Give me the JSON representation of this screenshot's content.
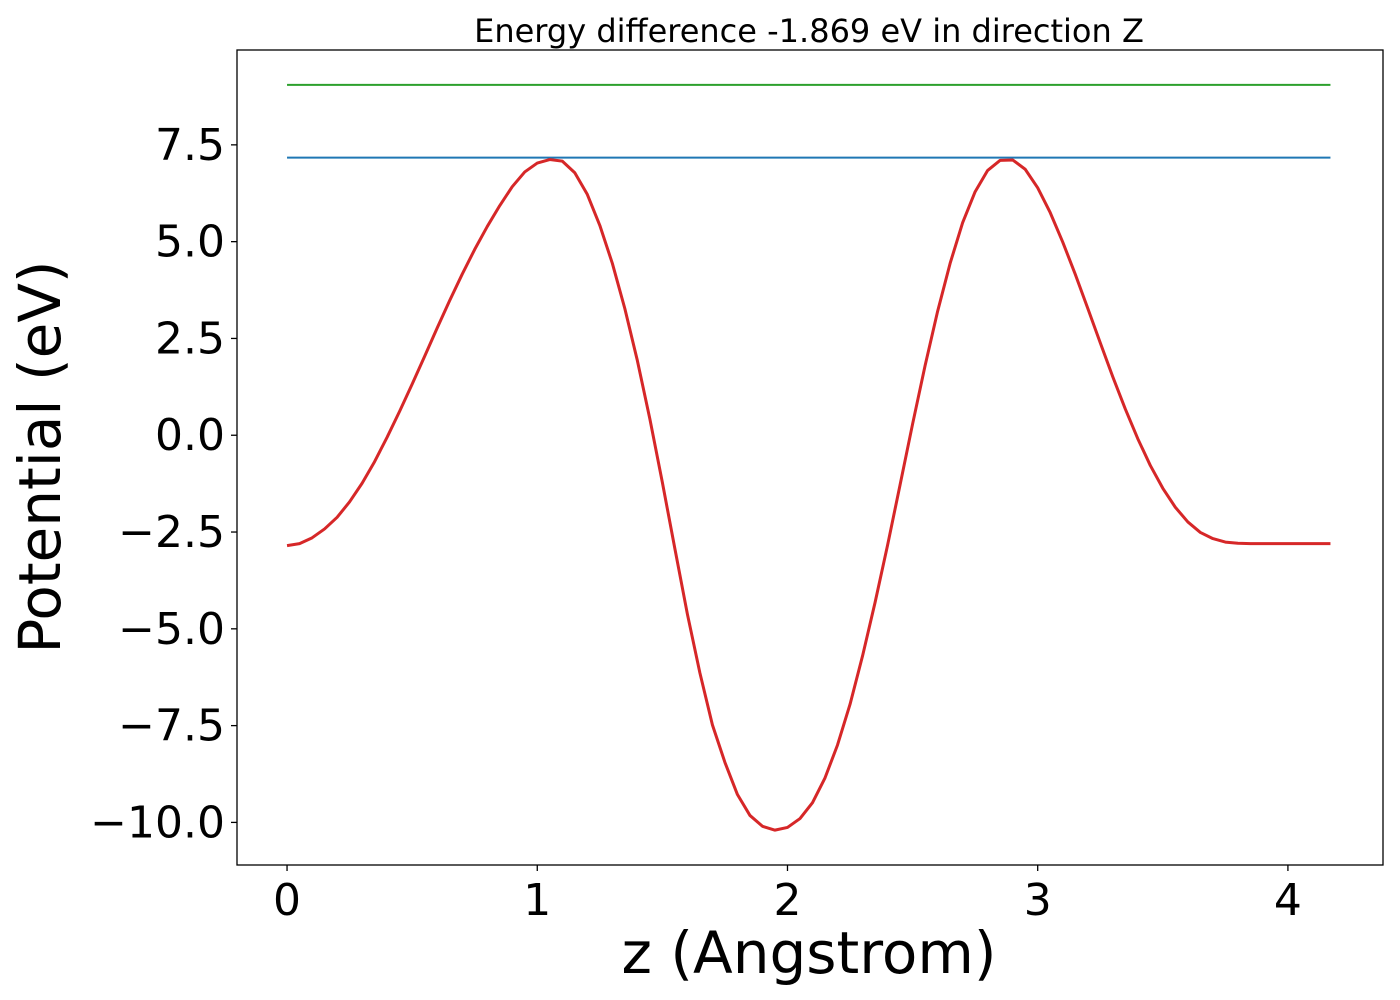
{
  "chart_data": {
    "type": "line",
    "title": "Energy difference -1.869 eV in direction Z",
    "xlabel": "z (Angstrom)",
    "ylabel": "Potential (eV)",
    "xlim": [
      -0.2,
      4.38
    ],
    "ylim": [
      -11.1,
      9.95
    ],
    "grid": false,
    "xticks": [
      {
        "value": 0,
        "label": "0"
      },
      {
        "value": 1,
        "label": "1"
      },
      {
        "value": 2,
        "label": "2"
      },
      {
        "value": 3,
        "label": "3"
      },
      {
        "value": 4,
        "label": "4"
      }
    ],
    "yticks": [
      {
        "value": 7.5,
        "label": "7.5"
      },
      {
        "value": 5.0,
        "label": "5.0"
      },
      {
        "value": 2.5,
        "label": "2.5"
      },
      {
        "value": 0.0,
        "label": "0.0"
      },
      {
        "value": -2.5,
        "label": "−2.5"
      },
      {
        "value": -5.0,
        "label": "−5.0"
      },
      {
        "value": -7.5,
        "label": "−7.5"
      },
      {
        "value": -10.0,
        "label": "−10.0"
      }
    ],
    "series": [
      {
        "color": "#2ca02c",
        "x": [
          0.0,
          4.17
        ],
        "y": [
          9.05,
          9.05
        ]
      },
      {
        "color": "#1f77b4",
        "x": [
          0.0,
          4.17
        ],
        "y": [
          7.17,
          7.17
        ]
      },
      {
        "color": "#d62728",
        "x": [
          0.0,
          0.05,
          0.1,
          0.15,
          0.2,
          0.25,
          0.3,
          0.35,
          0.4,
          0.45,
          0.5,
          0.55,
          0.6,
          0.65,
          0.7,
          0.75,
          0.8,
          0.85,
          0.9,
          0.95,
          1.0,
          1.05,
          1.1,
          1.15,
          1.2,
          1.25,
          1.3,
          1.35,
          1.4,
          1.45,
          1.5,
          1.55,
          1.6,
          1.65,
          1.7,
          1.75,
          1.8,
          1.85,
          1.9,
          1.95,
          2.0,
          2.05,
          2.1,
          2.15,
          2.2,
          2.25,
          2.3,
          2.35,
          2.4,
          2.45,
          2.5,
          2.55,
          2.6,
          2.65,
          2.7,
          2.75,
          2.8,
          2.85,
          2.9,
          2.95,
          3.0,
          3.05,
          3.1,
          3.15,
          3.2,
          3.25,
          3.3,
          3.35,
          3.4,
          3.45,
          3.5,
          3.55,
          3.6,
          3.65,
          3.7,
          3.75,
          3.8,
          3.85,
          3.9,
          3.95,
          4.0,
          4.05,
          4.1,
          4.15,
          4.17
        ],
        "y": [
          -2.85,
          -2.8,
          -2.65,
          -2.42,
          -2.12,
          -1.72,
          -1.24,
          -0.68,
          -0.05,
          0.62,
          1.32,
          2.04,
          2.77,
          3.48,
          4.16,
          4.8,
          5.39,
          5.93,
          6.42,
          6.8,
          7.03,
          7.12,
          7.08,
          6.78,
          6.22,
          5.42,
          4.44,
          3.27,
          1.93,
          0.42,
          -1.22,
          -2.93,
          -4.62,
          -6.14,
          -7.48,
          -8.45,
          -9.28,
          -9.82,
          -10.1,
          -10.2,
          -10.13,
          -9.9,
          -9.49,
          -8.85,
          -8.0,
          -6.95,
          -5.7,
          -4.32,
          -2.84,
          -1.28,
          0.29,
          1.8,
          3.2,
          4.44,
          5.49,
          6.29,
          6.84,
          7.1,
          7.11,
          6.87,
          6.39,
          5.75,
          4.99,
          4.16,
          3.28,
          2.39,
          1.51,
          0.68,
          -0.09,
          -0.78,
          -1.37,
          -1.86,
          -2.24,
          -2.51,
          -2.67,
          -2.76,
          -2.79,
          -2.8,
          -2.8,
          -2.8,
          -2.8,
          -2.8,
          -2.8,
          -2.8,
          -2.8
        ]
      }
    ]
  }
}
